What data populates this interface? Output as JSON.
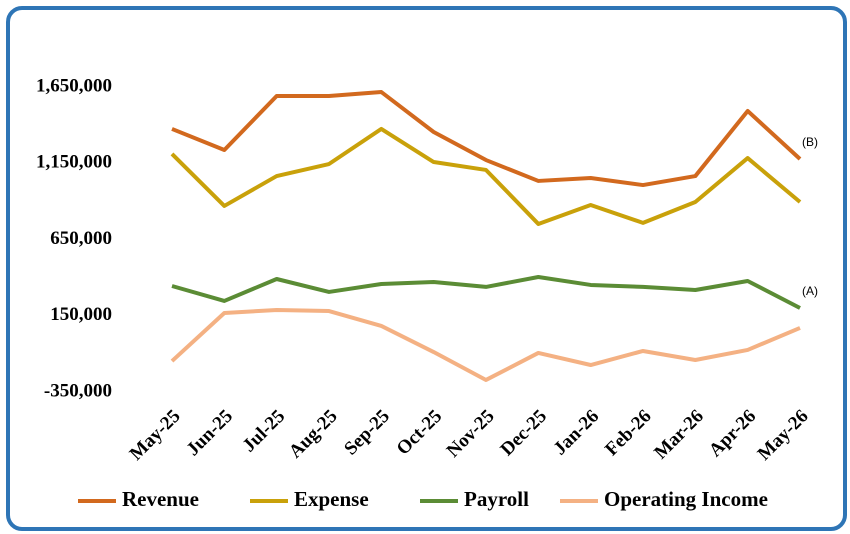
{
  "chart_data": {
    "type": "line",
    "categories": [
      "May-25",
      "Jun-25",
      "Jul-25",
      "Aug-25",
      "Sep-25",
      "Oct-25",
      "Nov-25",
      "Dec-25",
      "Jan-26",
      "Feb-26",
      "Mar-26",
      "Apr-26",
      "May-26"
    ],
    "series": [
      {
        "name": "Revenue",
        "color": "#d2691e",
        "values": [
          1375000,
          1237000,
          1591000,
          1591000,
          1617000,
          1355000,
          1171000,
          1034000,
          1053000,
          1007000,
          1066000,
          1493000,
          1178000
        ]
      },
      {
        "name": "Expense",
        "color": "#c9a10a",
        "values": [
          1211000,
          870000,
          1066000,
          1145000,
          1375000,
          1158000,
          1106000,
          752000,
          876000,
          759000,
          896000,
          1184000,
          896000
        ]
      },
      {
        "name": "Payroll",
        "color": "#5b8c35",
        "values": [
          345000,
          247000,
          391000,
          306000,
          358000,
          371000,
          339000,
          404000,
          352000,
          339000,
          319000,
          378000,
          201000
        ]
      },
      {
        "name": "Operating Income",
        "color": "#f4b183",
        "values": [
          -147000,
          168000,
          188000,
          181000,
          83000,
          -88000,
          -271000,
          -94000,
          -173000,
          -81000,
          -140000,
          -74000,
          70000
        ]
      }
    ],
    "annotations": [
      "(B)",
      "(A)"
    ],
    "ylim": [
      -350000,
      1650000
    ],
    "yticks": [
      {
        "value": 1650000,
        "label": "1,650,000"
      },
      {
        "value": 1150000,
        "label": "1,150,000"
      },
      {
        "value": 650000,
        "label": "650,000"
      },
      {
        "value": 150000,
        "label": "150,000"
      },
      {
        "value": -350000,
        "label": "-350,000"
      }
    ],
    "grid": false,
    "legend": "bottom"
  }
}
